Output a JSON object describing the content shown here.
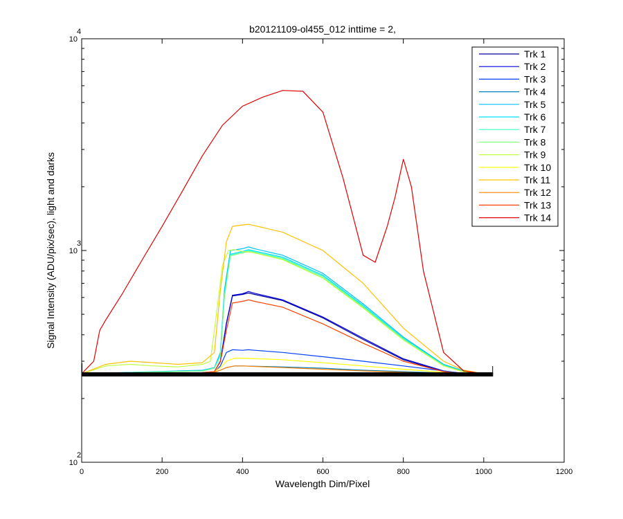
{
  "chart_data": {
    "type": "line",
    "title": "b20121109-ol455_012 inttime = 2,",
    "xlabel": "Wavelength Dim/Pixel",
    "ylabel": "Signal Intensity (ADU/pix/sec), light and darks",
    "xlim": [
      0,
      1200
    ],
    "ylim": [
      100,
      10000
    ],
    "yscale": "log",
    "xticks": [
      0,
      200,
      400,
      600,
      800,
      1000,
      1200
    ],
    "yticks": [
      {
        "value": 100,
        "base": "10",
        "exp": "2"
      },
      {
        "value": 1000,
        "base": "10",
        "exp": "3"
      },
      {
        "value": 10000,
        "base": "10",
        "exp": "4"
      }
    ],
    "grid": false,
    "legend_position": "top-right",
    "dark_level": 260,
    "series": [
      {
        "name": "Trk 1",
        "color": "#00009f",
        "x": [
          0,
          300,
          330,
          345,
          360,
          375,
          400,
          415,
          430,
          500,
          600,
          700,
          800,
          900,
          950,
          1000,
          1023
        ],
        "y": [
          262,
          265,
          268,
          300,
          450,
          610,
          620,
          630,
          620,
          580,
          480,
          380,
          305,
          268,
          262,
          262,
          262
        ]
      },
      {
        "name": "Trk 2",
        "color": "#0000df",
        "x": [
          0,
          300,
          330,
          345,
          360,
          375,
          400,
          415,
          430,
          500,
          600,
          700,
          800,
          900,
          950,
          1000,
          1023
        ],
        "y": [
          262,
          265,
          268,
          300,
          455,
          615,
          625,
          640,
          628,
          585,
          485,
          385,
          308,
          270,
          262,
          262,
          262
        ]
      },
      {
        "name": "Trk 3",
        "color": "#0040ff",
        "x": [
          0,
          300,
          330,
          345,
          360,
          375,
          400,
          415,
          430,
          500,
          600,
          700,
          800,
          900,
          950,
          1000,
          1023
        ],
        "y": [
          262,
          264,
          266,
          285,
          330,
          340,
          338,
          340,
          338,
          330,
          315,
          300,
          285,
          270,
          263,
          262,
          262
        ]
      },
      {
        "name": "Trk 4",
        "color": "#0080c0",
        "x": [
          0,
          300,
          330,
          345,
          360,
          380,
          400,
          500,
          600,
          700,
          800,
          900,
          1000,
          1023
        ],
        "y": [
          262,
          264,
          266,
          272,
          280,
          285,
          285,
          282,
          278,
          272,
          268,
          264,
          262,
          262
        ]
      },
      {
        "name": "Trk 5",
        "color": "#00bfff",
        "x": [
          0,
          300,
          330,
          345,
          355,
          370,
          400,
          415,
          430,
          500,
          600,
          700,
          800,
          900,
          950,
          1000,
          1023
        ],
        "y": [
          262,
          272,
          280,
          330,
          650,
          1000,
          1020,
          1040,
          1020,
          950,
          780,
          560,
          390,
          290,
          270,
          262,
          262
        ]
      },
      {
        "name": "Trk 6",
        "color": "#00e0ff",
        "x": [
          0,
          300,
          330,
          345,
          355,
          370,
          400,
          415,
          430,
          500,
          600,
          700,
          800,
          900,
          950,
          1000,
          1023
        ],
        "y": [
          262,
          270,
          278,
          320,
          620,
          960,
          990,
          1010,
          995,
          930,
          765,
          550,
          385,
          288,
          268,
          262,
          262
        ]
      },
      {
        "name": "Trk 7",
        "color": "#40ffbf",
        "x": [
          0,
          300,
          330,
          345,
          355,
          370,
          400,
          415,
          430,
          500,
          600,
          700,
          800,
          900,
          950,
          1000,
          1023
        ],
        "y": [
          262,
          270,
          278,
          318,
          610,
          950,
          980,
          1000,
          985,
          920,
          755,
          545,
          383,
          287,
          268,
          262,
          262
        ]
      },
      {
        "name": "Trk 8",
        "color": "#80ff80",
        "x": [
          0,
          300,
          330,
          345,
          355,
          370,
          400,
          415,
          430,
          500,
          600,
          700,
          800,
          900,
          950,
          1000,
          1023
        ],
        "y": [
          262,
          270,
          278,
          316,
          600,
          945,
          975,
          990,
          975,
          910,
          745,
          540,
          380,
          286,
          268,
          262,
          262
        ]
      },
      {
        "name": "Trk 9",
        "color": "#bfff40",
        "x": [
          0,
          60,
          120,
          180,
          240,
          300,
          320,
          335,
          350,
          365,
          380,
          400,
          415,
          430,
          500,
          600,
          700,
          800,
          900,
          950,
          1000,
          1023
        ],
        "y": [
          262,
          285,
          290,
          285,
          282,
          290,
          300,
          500,
          850,
          1000,
          1010,
          990,
          985,
          975,
          905,
          740,
          535,
          378,
          285,
          267,
          262,
          262
        ]
      },
      {
        "name": "Trk 10",
        "color": "#ffff00",
        "x": [
          0,
          300,
          330,
          345,
          360,
          380,
          400,
          500,
          600,
          700,
          800,
          900,
          1000,
          1023
        ],
        "y": [
          262,
          265,
          268,
          280,
          300,
          310,
          310,
          305,
          295,
          285,
          275,
          266,
          262,
          262
        ]
      },
      {
        "name": "Trk 11",
        "color": "#ffc000",
        "x": [
          0,
          60,
          120,
          180,
          240,
          300,
          330,
          345,
          360,
          375,
          400,
          415,
          430,
          500,
          600,
          700,
          800,
          900,
          950,
          1000,
          1023
        ],
        "y": [
          262,
          290,
          300,
          295,
          290,
          295,
          330,
          650,
          1100,
          1300,
          1320,
          1330,
          1310,
          1220,
          1000,
          700,
          430,
          300,
          272,
          262,
          262
        ]
      },
      {
        "name": "Trk 12",
        "color": "#ff8000",
        "x": [
          0,
          300,
          330,
          345,
          360,
          380,
          400,
          500,
          600,
          700,
          800,
          900,
          1000,
          1023
        ],
        "y": [
          262,
          264,
          266,
          272,
          280,
          285,
          285,
          280,
          275,
          270,
          266,
          263,
          262,
          262
        ]
      },
      {
        "name": "Trk 13",
        "color": "#ff4000",
        "x": [
          0,
          300,
          330,
          345,
          360,
          375,
          400,
          415,
          430,
          500,
          600,
          700,
          800,
          900,
          950,
          1000,
          1023
        ],
        "y": [
          262,
          265,
          268,
          298,
          420,
          565,
          575,
          585,
          575,
          540,
          450,
          365,
          300,
          268,
          262,
          262,
          262
        ]
      },
      {
        "name": "Trk 14",
        "color": "#df0000",
        "x": [
          0,
          30,
          45,
          60,
          100,
          150,
          200,
          250,
          300,
          350,
          400,
          450,
          500,
          550,
          600,
          650,
          700,
          730,
          760,
          780,
          800,
          820,
          850,
          900,
          950,
          1000,
          1023
        ],
        "y": [
          262,
          300,
          420,
          470,
          620,
          900,
          1300,
          1900,
          2800,
          3900,
          4800,
          5300,
          5700,
          5650,
          4500,
          2200,
          950,
          880,
          1300,
          1800,
          2700,
          2000,
          800,
          330,
          270,
          262,
          262
        ]
      }
    ]
  }
}
